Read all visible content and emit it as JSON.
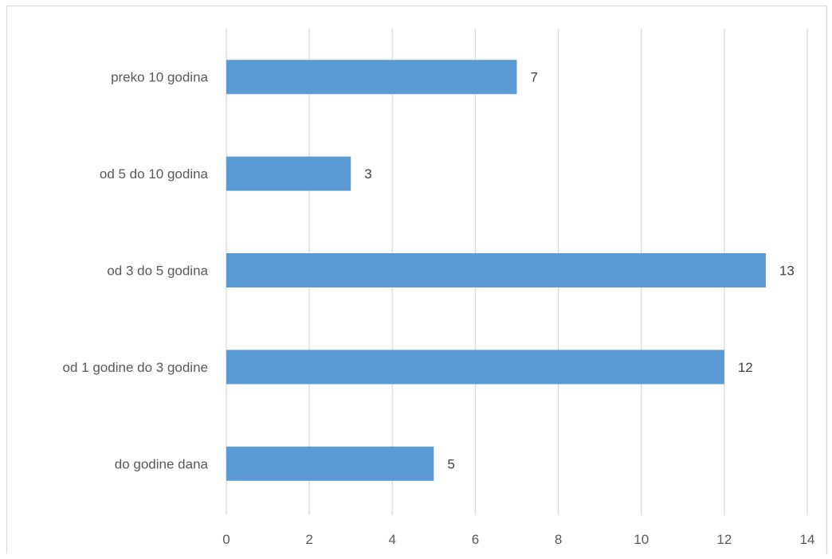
{
  "chart_data": {
    "type": "bar",
    "orientation": "horizontal",
    "categories": [
      "preko 10 godina",
      "od 5 do 10 godina",
      "od 3 do 5 godina",
      "od 1 godine do 3 godine",
      "do godine dana"
    ],
    "values": [
      7,
      3,
      13,
      12,
      5
    ],
    "title": "",
    "xlabel": "",
    "ylabel": "",
    "xlim": [
      0,
      14
    ],
    "x_ticks": [
      0,
      2,
      4,
      6,
      8,
      10,
      12,
      14
    ],
    "grid": true,
    "legend": false,
    "data_labels": true,
    "bar_color": "#5b9bd5",
    "grid_color": "#d9d9d9"
  }
}
